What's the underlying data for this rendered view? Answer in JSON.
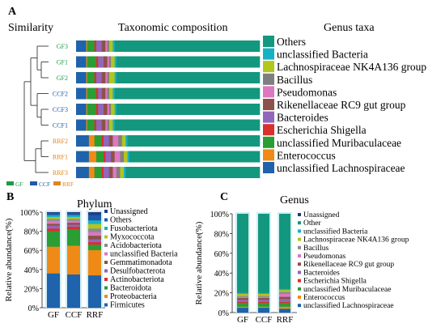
{
  "panelA": {
    "letter": "A",
    "similarity_label": "Similarity",
    "composition_title": "Taxonomic composition",
    "genus_title": "Genus taxa",
    "samples": [
      {
        "name": "GF3",
        "group": "GF"
      },
      {
        "name": "GF1",
        "group": "GF"
      },
      {
        "name": "GF2",
        "group": "GF"
      },
      {
        "name": "CCF2",
        "group": "CCF"
      },
      {
        "name": "CCF3",
        "group": "CCF"
      },
      {
        "name": "CCF1",
        "group": "CCF"
      },
      {
        "name": "RRF2",
        "group": "RRF"
      },
      {
        "name": "RRF1",
        "group": "RRF"
      },
      {
        "name": "RRF3",
        "group": "RRF"
      }
    ],
    "group_colors": {
      "GF": "#1e9a4a",
      "CCF": "#1f5aa6",
      "RRF": "#e0861e"
    },
    "group_legend": [
      "GF",
      "CCF",
      "RRF"
    ],
    "taxa": [
      {
        "name": "Others",
        "color": "#13977f"
      },
      {
        "name": "unclassified Bacteria",
        "color": "#17b1c4"
      },
      {
        "name": "Lachnospiraceae NK4A136 group",
        "color": "#b3c51f"
      },
      {
        "name": "Bacillus",
        "color": "#7f7f7f"
      },
      {
        "name": "Pseudomonas",
        "color": "#dc77c1"
      },
      {
        "name": "Rikenellaceae RC9 gut group",
        "color": "#8c5148"
      },
      {
        "name": "Bacteroides",
        "color": "#9266bb"
      },
      {
        "name": "Escherichia Shigella",
        "color": "#d93030"
      },
      {
        "name": "unclassified Muribaculaceae",
        "color": "#2a9d33"
      },
      {
        "name": "Enterococcus",
        "color": "#f08a16"
      },
      {
        "name": "unclassified Lachnospiraceae",
        "color": "#1e63ab"
      }
    ],
    "compositions": [
      [
        79,
        1,
        2,
        1,
        1,
        2,
        3,
        1,
        4,
        0.5,
        5.5
      ],
      [
        78,
        1,
        2,
        1,
        1,
        2,
        3,
        1,
        5,
        0.5,
        5.5
      ],
      [
        78,
        1,
        3,
        1,
        1,
        2,
        3,
        1,
        4,
        0.5,
        5.5
      ],
      [
        79,
        1,
        2,
        1,
        1,
        2,
        2,
        1,
        5,
        0.5,
        5.5
      ],
      [
        78,
        1,
        2,
        1,
        1,
        2,
        3,
        1,
        5,
        0.5,
        5.5
      ],
      [
        79,
        1,
        2,
        1,
        1,
        2,
        3,
        1,
        4,
        0.5,
        5.5
      ],
      [
        72,
        1,
        2,
        2,
        3,
        2,
        3,
        1,
        4,
        3,
        7
      ],
      [
        71,
        1,
        2,
        2,
        3,
        2,
        3,
        1,
        4,
        4,
        7
      ],
      [
        73,
        1,
        2,
        2,
        2,
        2,
        3,
        1,
        4,
        3,
        7
      ]
    ]
  },
  "panelB": {
    "letter": "B",
    "title": "Phylum",
    "ylabel": "Relative abundance(%)",
    "yticks": [
      "0%",
      "20%",
      "40%",
      "60%",
      "80%",
      "100%"
    ],
    "categories": [
      "GF",
      "CCF",
      "RRF"
    ],
    "legend": [
      {
        "name": "Unassigned",
        "color": "#1f3c88"
      },
      {
        "name": "Others",
        "color": "#1e5aa8"
      },
      {
        "name": "Fusobacteriota",
        "color": "#17b1c4"
      },
      {
        "name": "Myxococcota",
        "color": "#b3c51f"
      },
      {
        "name": "Acidobacteriota",
        "color": "#8c8c8c"
      },
      {
        "name": "unclassified Bacteria",
        "color": "#dc77c1"
      },
      {
        "name": "Gemmatimonadota",
        "color": "#8c5148"
      },
      {
        "name": "Desulfobacterota",
        "color": "#9266bb"
      },
      {
        "name": "Actinobacteriota",
        "color": "#d93030"
      },
      {
        "name": "Bacteroidota",
        "color": "#2a9d33"
      },
      {
        "name": "Proteobacteria",
        "color": "#f08a16"
      },
      {
        "name": "Firmicutes",
        "color": "#1e63ab"
      }
    ],
    "series_bottom_to_top": [
      {
        "name": "Firmicutes",
        "color": "#1e63ab",
        "values": [
          36,
          35,
          36
        ]
      },
      {
        "name": "Proteobacteria",
        "color": "#f08a16",
        "values": [
          28,
          30,
          28
        ]
      },
      {
        "name": "Bacteroidota",
        "color": "#2a9d33",
        "values": [
          16,
          17,
          6
        ]
      },
      {
        "name": "Actinobacteriota",
        "color": "#d93030",
        "values": [
          3,
          3,
          3
        ]
      },
      {
        "name": "Desulfobacterota",
        "color": "#9266bb",
        "values": [
          3,
          2,
          3
        ]
      },
      {
        "name": "Gemmatimonadota",
        "color": "#8c5148",
        "values": [
          2,
          2,
          4
        ]
      },
      {
        "name": "unclassified Bacteria",
        "color": "#dc77c1",
        "values": [
          3,
          2,
          4
        ]
      },
      {
        "name": "Acidobacteriota",
        "color": "#8c8c8c",
        "values": [
          2,
          2,
          4
        ]
      },
      {
        "name": "Myxococcota",
        "color": "#b3c51f",
        "values": [
          2,
          2,
          5
        ]
      },
      {
        "name": "Fusobacteriota",
        "color": "#17b1c4",
        "values": [
          2,
          2,
          4
        ]
      },
      {
        "name": "Others",
        "color": "#1e5aa8",
        "values": [
          2,
          2,
          6
        ]
      },
      {
        "name": "Unassigned",
        "color": "#1f3c88",
        "values": [
          1,
          1,
          3
        ]
      }
    ]
  },
  "panelC": {
    "letter": "C",
    "title": "Genus",
    "ylabel": "Relative abundance(%)",
    "yticks": [
      "0%",
      "20%",
      "40%",
      "60%",
      "80%",
      "100%"
    ],
    "categories": [
      "GF",
      "CCF",
      "RRF"
    ],
    "legend": [
      {
        "name": "Unassigned",
        "color": "#1f3c88"
      },
      {
        "name": "Other",
        "color": "#13977f"
      },
      {
        "name": "unclassified Bacteria",
        "color": "#17b1c4"
      },
      {
        "name": "Lachnospiraceae NK4A136 group",
        "color": "#b3c51f"
      },
      {
        "name": "Bacillus",
        "color": "#8c8c8c"
      },
      {
        "name": "Pseudomonas",
        "color": "#dc77c1"
      },
      {
        "name": "Rikenellaceae RC9 gut group",
        "color": "#8c5148"
      },
      {
        "name": "Bacteroides",
        "color": "#9266bb"
      },
      {
        "name": "Escherichia Shigella",
        "color": "#d93030"
      },
      {
        "name": "unclassified Muribaculaceae",
        "color": "#2a9d33"
      },
      {
        "name": "Enterococcus",
        "color": "#f08a16"
      },
      {
        "name": "unclassified Lachnospiraceae",
        "color": "#1e63ab"
      }
    ],
    "series_bottom_to_top": [
      {
        "name": "unclassified Lachnospiraceae",
        "color": "#1e63ab",
        "values": [
          5,
          5,
          4
        ]
      },
      {
        "name": "Enterococcus",
        "color": "#f08a16",
        "values": [
          1,
          1,
          2
        ]
      },
      {
        "name": "unclassified Muribaculaceae",
        "color": "#2a9d33",
        "values": [
          4,
          4,
          4
        ]
      },
      {
        "name": "Escherichia Shigella",
        "color": "#d93030",
        "values": [
          1,
          1,
          1
        ]
      },
      {
        "name": "Bacteroides",
        "color": "#9266bb",
        "values": [
          2,
          2,
          3
        ]
      },
      {
        "name": "Rikenellaceae RC9 gut group",
        "color": "#8c5148",
        "values": [
          2,
          2,
          2
        ]
      },
      {
        "name": "Pseudomonas",
        "color": "#dc77c1",
        "values": [
          1,
          1,
          3
        ]
      },
      {
        "name": "Bacillus",
        "color": "#8c8c8c",
        "values": [
          1,
          1,
          2
        ]
      },
      {
        "name": "Lachnospiraceae NK4A136 group",
        "color": "#b3c51f",
        "values": [
          2,
          2,
          2
        ]
      },
      {
        "name": "unclassified Bacteria",
        "color": "#17b1c4",
        "values": [
          1,
          1,
          1
        ]
      },
      {
        "name": "Other",
        "color": "#13977f",
        "values": [
          80,
          80,
          76
        ]
      },
      {
        "name": "Unassigned",
        "color": "#1f3c88",
        "values": [
          0,
          0,
          0
        ]
      }
    ]
  }
}
